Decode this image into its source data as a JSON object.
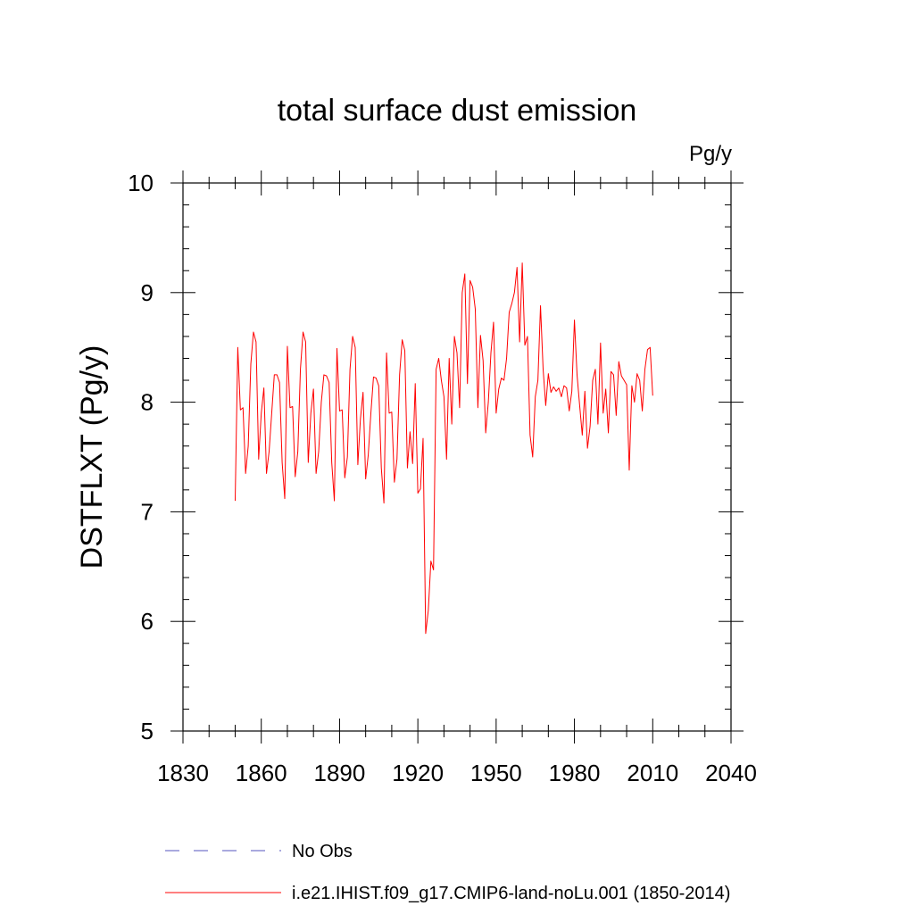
{
  "chart_data": {
    "type": "line",
    "title": "total surface dust emission",
    "units_label": "Pg/y",
    "ylabel": "DSTFLXT  (Pg/y)",
    "xlabel": "",
    "xlim": [
      1830,
      2040
    ],
    "ylim": [
      5,
      10
    ],
    "x_ticks": [
      "1830",
      "1860",
      "1890",
      "1920",
      "1950",
      "1980",
      "2010",
      "2040"
    ],
    "y_ticks": [
      "5",
      "6",
      "7",
      "8",
      "9",
      "10"
    ],
    "grid": false,
    "legend_position": "bottom",
    "legend": [
      {
        "label": "No Obs",
        "color": "#7777cc",
        "style": "dashed"
      },
      {
        "label": "i.e21.IHIST.f09_g17.CMIP6-land-noLu.001 (1850-2014)",
        "color": "#ff0000",
        "style": "solid"
      }
    ],
    "series": [
      {
        "name": "i.e21.IHIST.f09_g17.CMIP6-land-noLu.001 (1850-2014)",
        "color": "#ff0000",
        "x_start": 1850,
        "x_step": 1,
        "values": [
          7.1,
          8.5,
          7.93,
          7.95,
          7.35,
          7.6,
          8.35,
          8.64,
          8.55,
          7.48,
          7.9,
          8.13,
          7.35,
          7.55,
          7.9,
          8.25,
          8.25,
          8.18,
          7.45,
          7.12,
          8.51,
          7.95,
          7.96,
          7.32,
          7.55,
          8.3,
          8.64,
          8.55,
          7.45,
          7.9,
          8.12,
          7.35,
          7.55,
          8.0,
          8.25,
          8.24,
          8.18,
          7.45,
          7.1,
          8.49,
          7.92,
          7.93,
          7.31,
          7.5,
          8.3,
          8.6,
          8.5,
          7.43,
          7.85,
          8.09,
          7.3,
          7.52,
          7.9,
          8.23,
          8.22,
          8.15,
          7.4,
          7.08,
          8.45,
          7.9,
          7.91,
          7.27,
          7.48,
          8.25,
          8.57,
          8.47,
          7.4,
          7.73,
          7.44,
          8.17,
          7.17,
          7.21,
          7.67,
          5.89,
          6.1,
          6.55,
          6.47,
          8.3,
          8.4,
          8.2,
          8.05,
          7.48,
          8.4,
          7.8,
          8.6,
          8.45,
          7.95,
          9.0,
          9.17,
          8.17,
          9.11,
          9.05,
          8.85,
          7.95,
          8.61,
          8.38,
          7.72,
          8.0,
          8.45,
          8.73,
          7.9,
          8.12,
          8.22,
          8.2,
          8.4,
          8.82,
          8.9,
          9.0,
          9.23,
          8.55,
          9.27,
          8.52,
          8.6,
          7.7,
          7.5,
          8.05,
          8.2,
          8.88,
          8.3,
          7.97,
          8.26,
          8.09,
          8.14,
          8.1,
          8.13,
          8.05,
          8.15,
          8.13,
          7.92,
          8.1,
          8.75,
          8.25,
          7.97,
          7.7,
          8.1,
          7.58,
          7.78,
          8.2,
          8.3,
          7.8,
          8.54,
          7.9,
          8.12,
          7.72,
          8.28,
          8.25,
          7.88,
          8.37,
          8.24,
          8.2,
          8.16,
          7.38,
          8.15,
          8.0,
          8.26,
          8.2,
          7.92,
          8.3,
          8.48,
          8.5,
          8.06
        ]
      }
    ]
  }
}
